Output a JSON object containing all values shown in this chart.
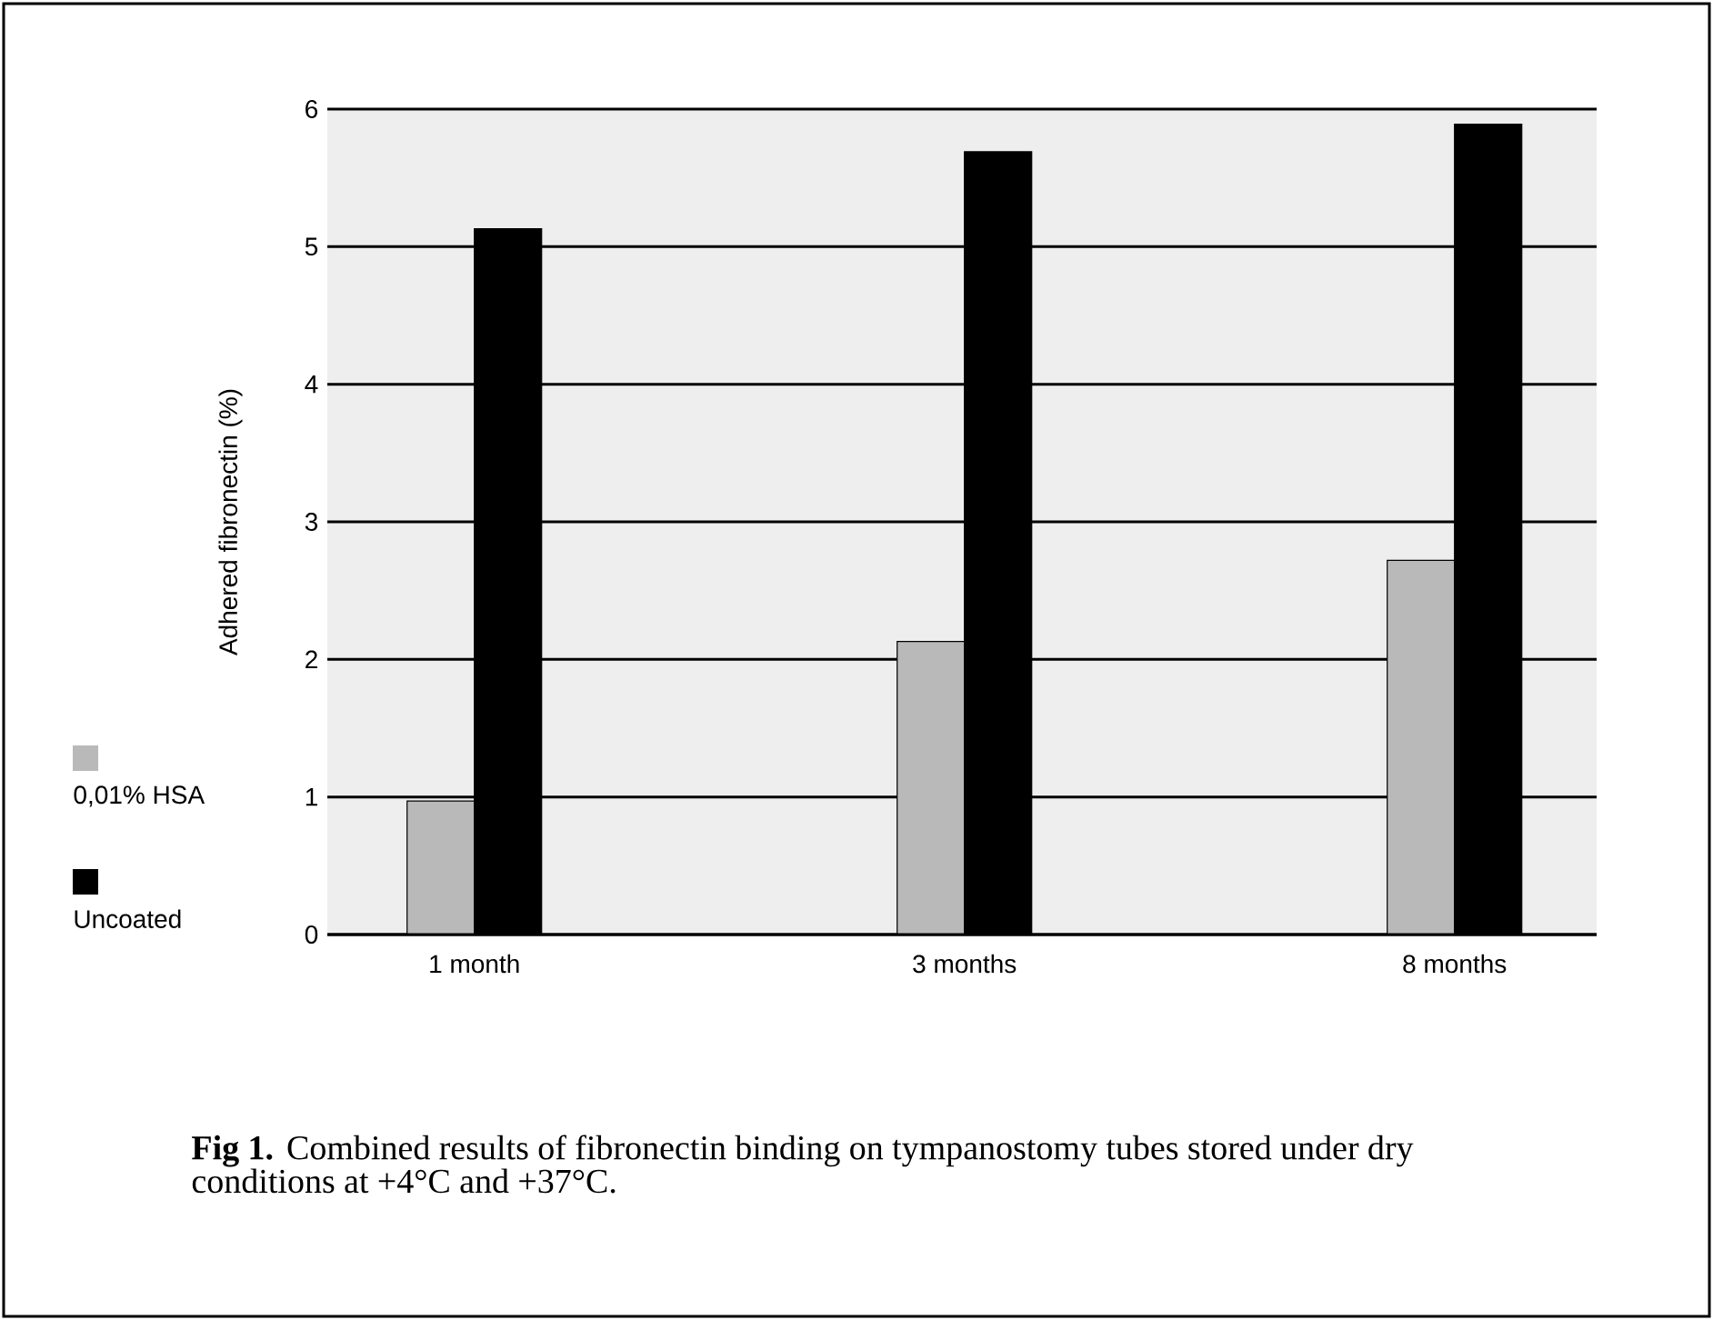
{
  "chart_data": {
    "type": "bar",
    "ylabel": "Adhered fibronectin (%)",
    "categories": [
      "1 month",
      "3 months",
      "8 months"
    ],
    "series": [
      {
        "name": "0,01% HSA",
        "color": "#b9b9b9",
        "values": [
          0.97,
          2.13,
          2.72
        ]
      },
      {
        "name": "Uncoated",
        "color": "#000000",
        "values": [
          5.13,
          5.69,
          5.89
        ]
      }
    ],
    "ylim": [
      0,
      6
    ],
    "yticks": [
      0,
      1,
      2,
      3,
      4,
      5,
      6
    ],
    "grid": "y",
    "legend": "left",
    "annotations": [
      "**Fig 1.** Combined results of fibronectin binding on tympanostomy tubes stored under dry conditions at +4°C and +37°C."
    ]
  }
}
